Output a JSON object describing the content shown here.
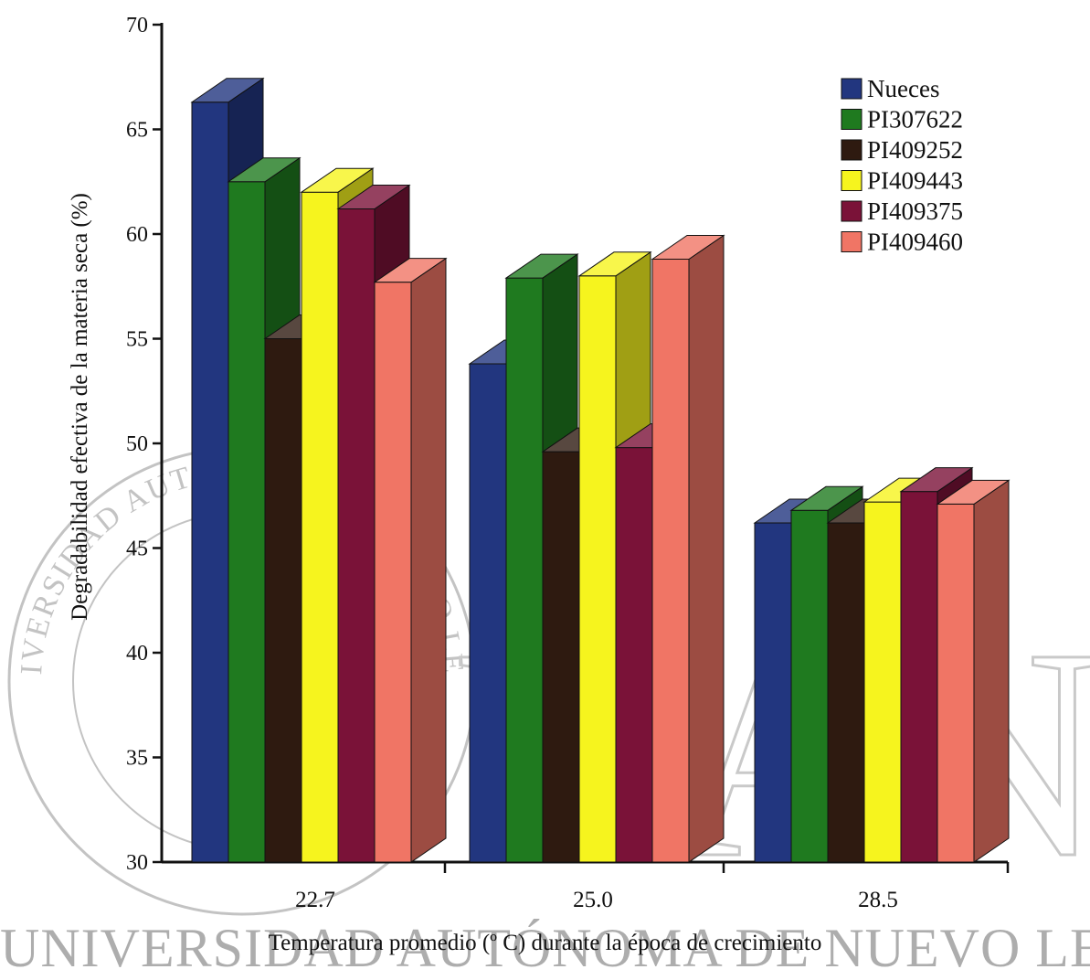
{
  "watermark": {
    "seal_text": "UNIVERSIDAD AUTÓNOMA DE NUEVO LEÓN",
    "bottom_text": "UNIVERSIDAD AUTÓNOMA DE NUEVO LEÓN",
    "big_letters": "UANL"
  },
  "chart_data": {
    "type": "bar",
    "xlabel": "Temperatura promedio (º C) durante la época de crecimiento",
    "ylabel": "Degradabilidad efectiva de la materia seca (%)",
    "ylim": [
      30,
      70
    ],
    "yticks": [
      "30",
      "35",
      "40",
      "45",
      "50",
      "55",
      "60",
      "65",
      "70"
    ],
    "categories": [
      "22.7",
      "25.0",
      "28.5"
    ],
    "legend_position": "top-right",
    "grid": false,
    "series": [
      {
        "name": "Nueces",
        "color": "#22367f",
        "values": [
          66.3,
          53.8,
          46.2
        ]
      },
      {
        "name": "PI307622",
        "color": "#1f7a1f",
        "values": [
          62.5,
          57.9,
          46.8
        ]
      },
      {
        "name": "PI409252",
        "color": "#2e1a10",
        "values": [
          55.0,
          49.6,
          46.2
        ]
      },
      {
        "name": "PI409443",
        "color": "#f6f41e",
        "values": [
          62.0,
          58.0,
          47.2
        ]
      },
      {
        "name": "PI409375",
        "color": "#7a1238",
        "values": [
          61.2,
          49.8,
          47.7
        ]
      },
      {
        "name": "PI409460",
        "color": "#f07565",
        "values": [
          57.7,
          58.8,
          47.1
        ]
      }
    ]
  }
}
